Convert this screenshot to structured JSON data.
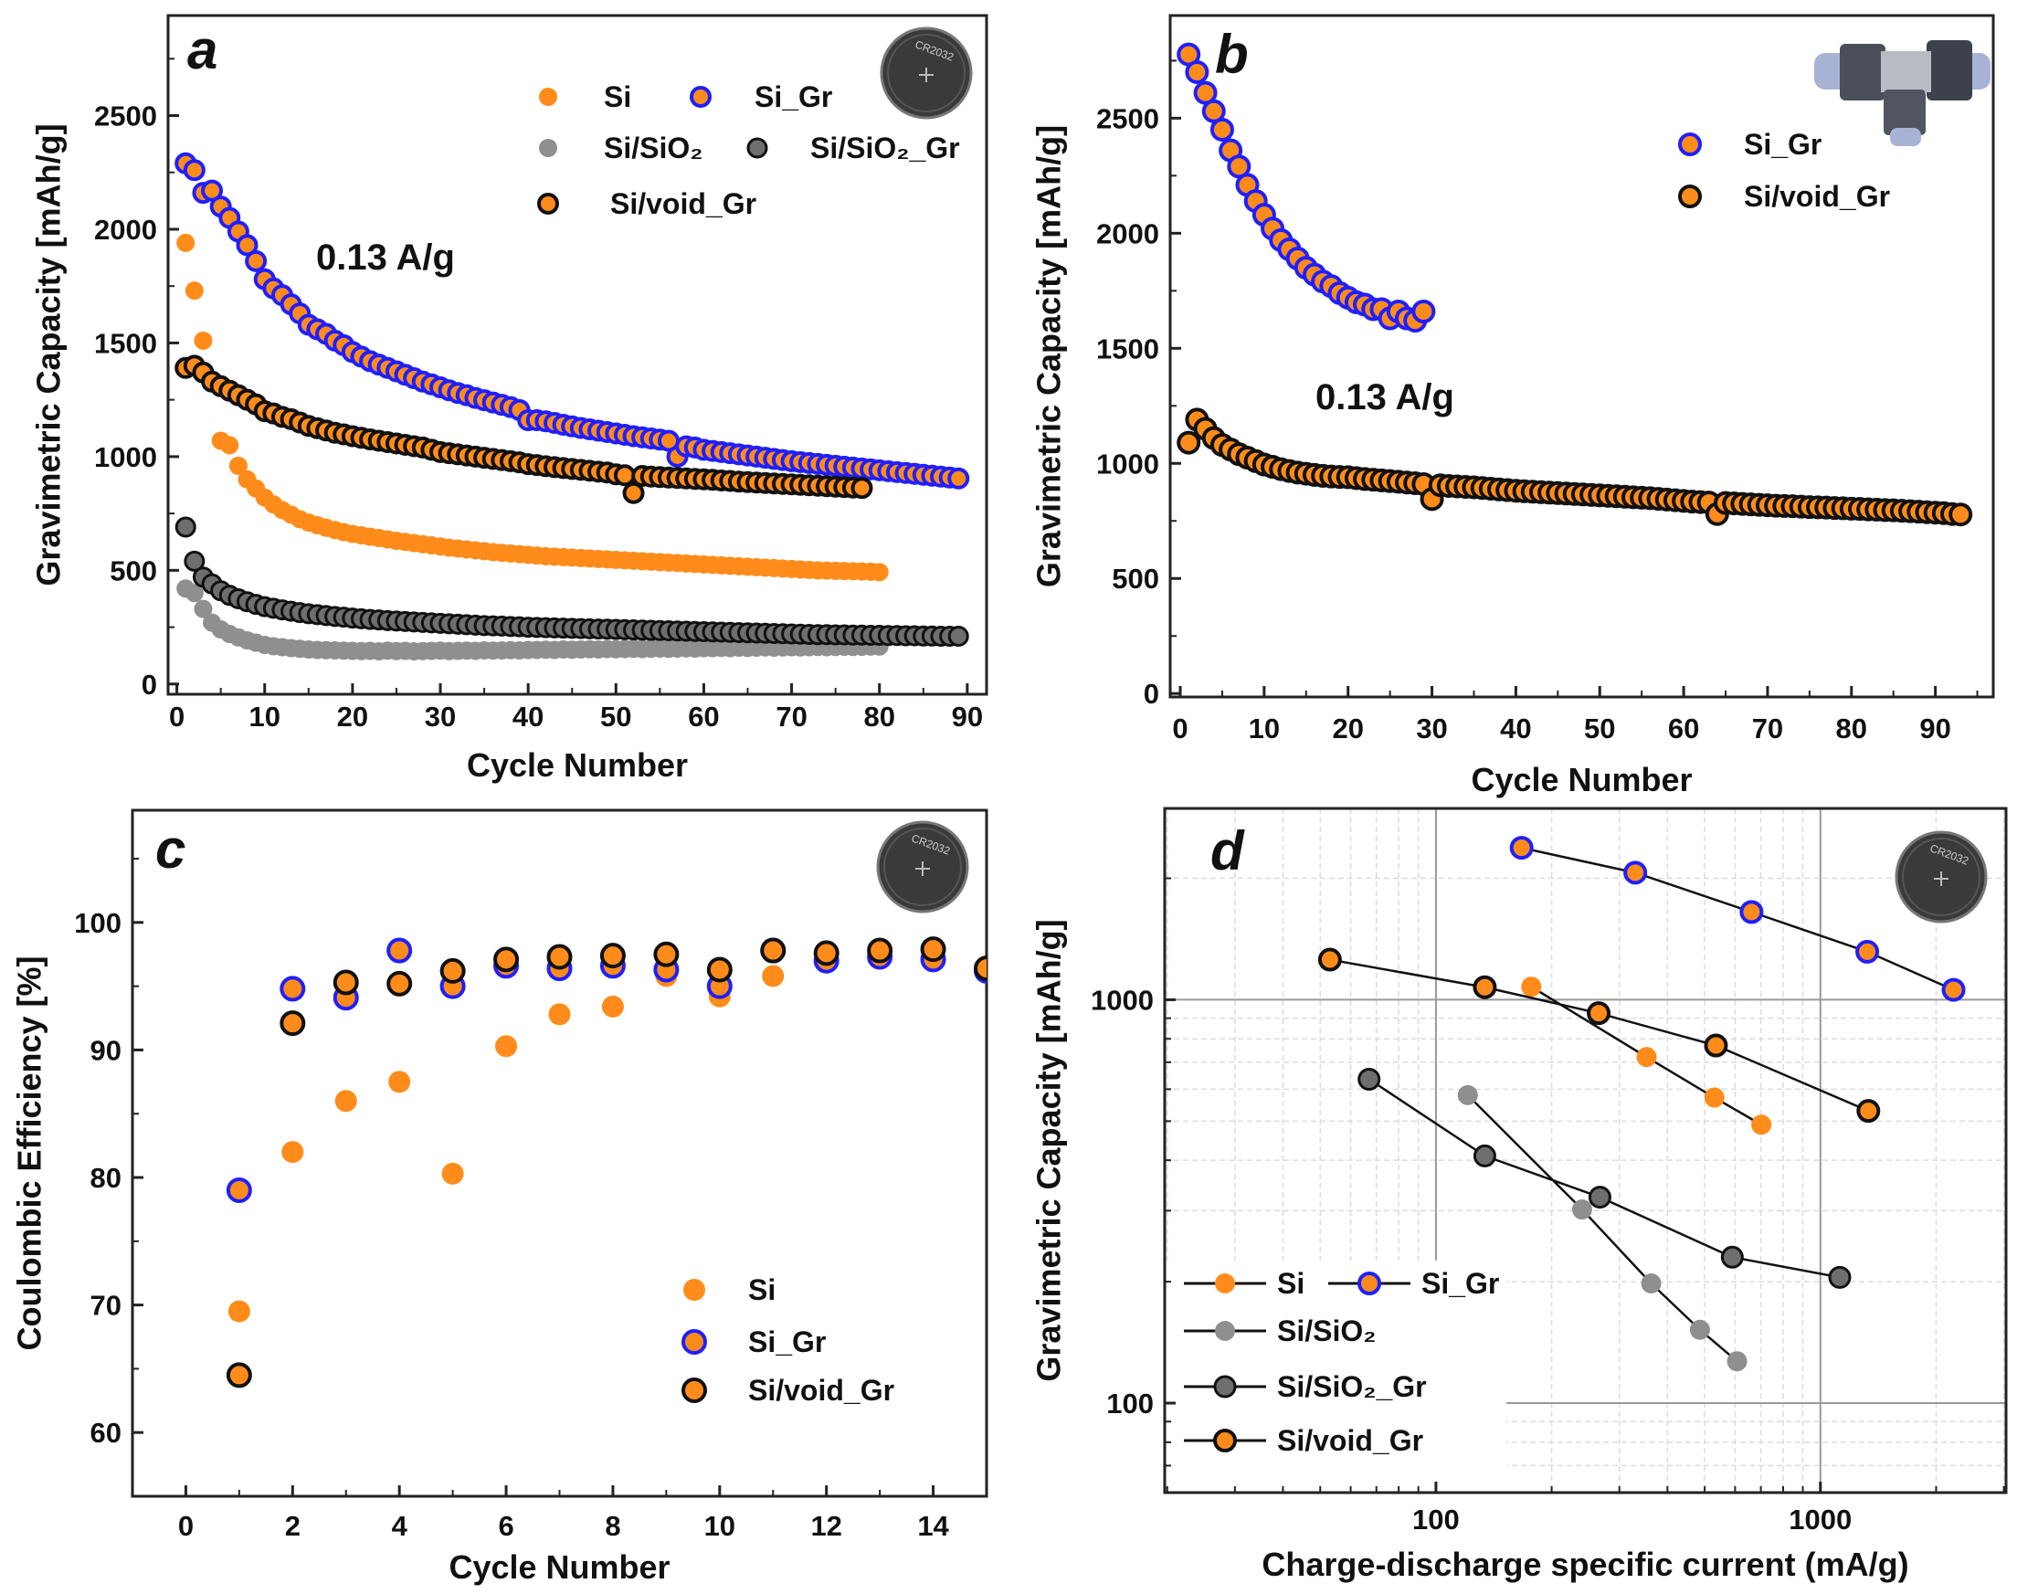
{
  "colors": {
    "orange": "#ff8c1a",
    "blue": "#1f1fff",
    "grey": "#8f8f8f",
    "dark_grey": "#6e6e6e",
    "black": "#111111"
  },
  "insets": {
    "coin_cell_text": "CR2032",
    "coin_cell_icon": "coin-cell-battery-photo",
    "swagelok_icon": "swagelok-tee-cell-photo"
  },
  "chart_data": [
    {
      "panel_label": "a",
      "type": "scatter",
      "xlabel": "Cycle Number",
      "ylabel": "Gravimetric Capacity [mAh/g]",
      "xlim": [
        -1,
        92.2
      ],
      "ylim": [
        -45,
        2940
      ],
      "xticks": [
        0,
        10,
        20,
        30,
        40,
        50,
        60,
        70,
        80,
        90
      ],
      "yticks": [
        0,
        500,
        1000,
        1500,
        2000,
        2500
      ],
      "annotation": "0.13 A/g",
      "inset": "coin cell",
      "legend_position": "top-right",
      "series": [
        {
          "name": "Si/SiO₂",
          "marker": "sio2",
          "y": [
            420,
            400,
            330,
            270,
            240,
            220,
            205,
            192,
            182,
            172,
            166,
            162,
            158,
            155,
            152,
            150,
            149,
            148,
            147,
            146,
            145,
            146,
            144,
            147,
            145,
            146,
            144,
            145,
            146,
            147,
            145,
            146,
            147,
            146,
            148,
            147,
            148,
            149,
            148,
            150,
            150,
            151,
            150,
            152,
            151,
            152,
            153,
            152,
            154,
            153,
            154,
            155,
            154,
            155,
            156,
            155,
            156,
            157,
            156,
            158,
            158,
            159,
            158,
            160,
            159,
            160,
            161,
            160,
            161,
            162,
            161,
            162,
            163,
            162,
            163,
            164,
            163,
            164,
            165,
            165
          ]
        },
        {
          "name": "Si/SiO₂_Gr",
          "marker": "sio2_gr",
          "y": [
            690,
            540,
            470,
            440,
            410,
            390,
            375,
            362,
            350,
            340,
            333,
            326,
            320,
            314,
            309,
            305,
            301,
            297,
            294,
            290,
            287,
            284,
            282,
            279,
            277,
            275,
            273,
            271,
            269,
            267,
            265,
            263,
            261,
            259,
            257,
            256,
            255,
            253,
            252,
            250,
            249,
            248,
            247,
            246,
            245,
            244,
            243,
            242,
            241,
            240,
            239,
            238,
            237,
            236,
            235,
            234,
            233,
            232,
            231,
            230,
            229,
            228,
            227,
            226,
            225,
            224,
            223,
            222,
            221,
            220,
            219,
            218,
            217,
            217,
            216,
            216,
            215,
            215,
            214,
            214,
            213,
            213,
            212,
            212,
            211,
            211,
            210,
            210,
            210
          ]
        },
        {
          "name": "Si",
          "marker": "si",
          "y": [
            1940,
            1730,
            1510,
            null,
            1070,
            1050,
            960,
            900,
            860,
            820,
            790,
            765,
            745,
            725,
            710,
            698,
            687,
            677,
            668,
            660,
            654,
            648,
            642,
            636,
            630,
            625,
            620,
            615,
            610,
            605,
            600,
            596,
            592,
            588,
            584,
            580,
            577,
            574,
            571,
            568,
            565,
            562,
            560,
            558,
            556,
            554,
            552,
            550,
            548,
            546,
            544,
            542,
            540,
            538,
            536,
            534,
            532,
            530,
            528,
            526,
            524,
            522,
            520,
            518,
            516,
            514,
            512,
            510,
            508,
            506,
            504,
            502,
            500,
            499,
            498,
            497,
            496,
            495,
            494,
            492
          ]
        },
        {
          "name": "Si_Gr",
          "marker": "si_gr",
          "y": [
            2290,
            2260,
            2160,
            2170,
            2100,
            2050,
            1990,
            1930,
            1860,
            1780,
            1740,
            1710,
            1670,
            1630,
            1580,
            1560,
            1540,
            1510,
            1490,
            1460,
            1440,
            1420,
            1405,
            1390,
            1375,
            1360,
            1345,
            1330,
            1318,
            1305,
            1292,
            1280,
            1270,
            1258,
            1248,
            1238,
            1228,
            1218,
            1205,
            1160,
            1160,
            1155,
            1148,
            1140,
            1133,
            1126,
            1120,
            1114,
            1108,
            1102,
            1096,
            1090,
            1085,
            1080,
            1075,
            1070,
            1000,
            1045,
            1040,
            1030,
            1025,
            1020,
            1015,
            1010,
            1005,
            1000,
            995,
            990,
            985,
            980,
            976,
            972,
            968,
            964,
            960,
            956,
            952,
            948,
            944,
            940,
            936,
            932,
            928,
            924,
            920,
            916,
            912,
            908,
            904
          ]
        },
        {
          "name": "Si/void_Gr",
          "marker": "void_gr",
          "y": [
            1390,
            1400,
            1370,
            1330,
            1310,
            1290,
            1270,
            1250,
            1230,
            1200,
            1190,
            1175,
            1165,
            1150,
            1135,
            1125,
            1115,
            1105,
            1098,
            1090,
            1083,
            1076,
            1070,
            1064,
            1058,
            1052,
            1046,
            1040,
            1030,
            1020,
            1015,
            1010,
            1005,
            1000,
            995,
            990,
            985,
            980,
            975,
            967,
            963,
            958,
            954,
            950,
            946,
            942,
            938,
            934,
            930,
            922,
            918,
            840,
            915,
            912,
            910,
            908,
            906,
            904,
            902,
            900,
            898,
            895,
            893,
            890,
            888,
            886,
            884,
            882,
            880,
            878,
            876,
            874,
            872,
            870,
            868,
            866,
            864,
            862
          ]
        }
      ],
      "legend_order": [
        "Si",
        "Si_Gr",
        "Si/SiO₂",
        "Si/SiO₂_Gr",
        "Si/void_Gr"
      ]
    },
    {
      "panel_label": "b",
      "type": "scatter",
      "xlabel": "Cycle Number",
      "ylabel": "Gravimetric Capacity [mAh/g]",
      "xlim": [
        -1.2,
        96.9
      ],
      "ylim": [
        -15,
        2946
      ],
      "xticks": [
        0,
        10,
        20,
        30,
        40,
        50,
        60,
        70,
        80,
        90
      ],
      "yticks": [
        0,
        500,
        1000,
        1500,
        2000,
        2500
      ],
      "annotation": "0.13 A/g",
      "inset": "Swagelok cell",
      "legend_position": "top-right",
      "series": [
        {
          "name": "Si_Gr",
          "marker": "si_gr",
          "y": [
            2777,
            2700,
            2610,
            2530,
            2450,
            2360,
            2290,
            2210,
            2140,
            2080,
            2020,
            1970,
            1930,
            1890,
            1850,
            1820,
            1790,
            1770,
            1740,
            1720,
            1700,
            1690,
            1670,
            1670,
            1630,
            1660,
            1630,
            1620,
            1660
          ]
        },
        {
          "name": "Si/void_Gr",
          "marker": "void_gr",
          "y": [
            1090,
            1190,
            1150,
            1110,
            1080,
            1060,
            1040,
            1025,
            1010,
            995,
            985,
            975,
            967,
            960,
            955,
            950,
            946,
            943,
            941,
            940,
            936,
            932,
            929,
            926,
            923,
            920,
            917,
            914,
            910,
            845,
            905,
            902,
            900,
            898,
            896,
            893,
            890,
            887,
            884,
            881,
            879,
            877,
            875,
            873,
            871,
            869,
            867,
            865,
            863,
            861,
            859,
            857,
            855,
            853,
            851,
            849,
            846,
            843,
            840,
            837,
            834,
            832,
            830,
            780,
            828,
            826,
            824,
            822,
            820,
            818,
            816,
            815,
            814,
            812,
            810,
            809,
            808,
            806,
            805,
            803,
            802,
            800,
            799,
            797,
            796,
            794,
            792,
            790,
            788,
            786,
            784,
            780,
            778
          ]
        }
      ],
      "legend_order": [
        "Si_Gr",
        "Si/void_Gr"
      ]
    },
    {
      "panel_label": "c",
      "type": "scatter",
      "xlabel": "Cycle Number",
      "ylabel": "Coulombic Efficiency [%]",
      "xlim": [
        -1,
        15
      ],
      "ylim": [
        55,
        108.8
      ],
      "xticks": [
        0,
        2,
        4,
        6,
        8,
        10,
        12,
        14
      ],
      "yticks": [
        60,
        70,
        80,
        90,
        100
      ],
      "inset": "coin cell",
      "legend_position": "bottom-right",
      "series": [
        {
          "name": "Si",
          "marker": "si",
          "y": [
            69.5,
            82,
            86,
            87.5,
            80.3,
            90.3,
            92.8,
            93.4,
            95.8,
            94.2,
            95.8,
            97.2,
            97.2,
            97.5,
            96.5
          ]
        },
        {
          "name": "Si_Gr",
          "marker": "si_gr",
          "y": [
            79,
            94.8,
            94.1,
            97.8,
            95,
            96.6,
            96.4,
            96.6,
            96.3,
            95,
            97.8,
            97,
            97.3,
            97.1,
            96.2
          ]
        },
        {
          "name": "Si/void_Gr",
          "marker": "void_gr",
          "y": [
            64.5,
            92.1,
            95.3,
            95.2,
            96.2,
            97.1,
            97.3,
            97.4,
            97.5,
            96.3,
            97.8,
            97.6,
            97.8,
            97.9,
            96.4
          ]
        }
      ],
      "legend_order": [
        "Si",
        "Si_Gr",
        "Si/void_Gr"
      ]
    },
    {
      "panel_label": "d",
      "type": "line",
      "xscale": "log",
      "yscale": "log",
      "xlabel": "Charge-discharge specific current (mA/g)",
      "ylabel": "Gravimetric Capacity [mAh/g]",
      "xlim": [
        19.7,
        3040
      ],
      "ylim": [
        60,
        2980
      ],
      "xticks": [
        100,
        1000
      ],
      "yticks": [
        100,
        1000
      ],
      "grid": true,
      "inset": "coin cell",
      "legend_position": "bottom-left",
      "series": [
        {
          "name": "Si",
          "marker": "si",
          "x": [
            177,
            353,
            530,
            702
          ],
          "y": [
            1077,
            721,
            572,
            490
          ]
        },
        {
          "name": "Si_Gr",
          "marker": "si_gr",
          "x": [
            167,
            330,
            662,
            1324,
            2220
          ],
          "y": [
            2380,
            2065,
            1650,
            1315,
            1058
          ]
        },
        {
          "name": "Si/SiO₂",
          "marker": "sio2",
          "x": [
            121,
            240,
            363,
            486,
            607
          ],
          "y": [
            580,
            302,
            198,
            152,
            127
          ]
        },
        {
          "name": "Si/SiO₂_Gr",
          "marker": "sio2_gr",
          "x": [
            67,
            134,
            267,
            590,
            1123
          ],
          "y": [
            635,
            410,
            324,
            230,
            205
          ]
        },
        {
          "name": "Si/void_Gr",
          "marker": "void_gr",
          "x": [
            53,
            134,
            265,
            535,
            1333
          ],
          "y": [
            1257,
            1074,
            926,
            770,
            530
          ]
        }
      ],
      "legend_order": [
        "Si",
        "Si_Gr",
        "Si/SiO₂",
        "Si/SiO₂_Gr",
        "Si/void_Gr"
      ]
    }
  ]
}
